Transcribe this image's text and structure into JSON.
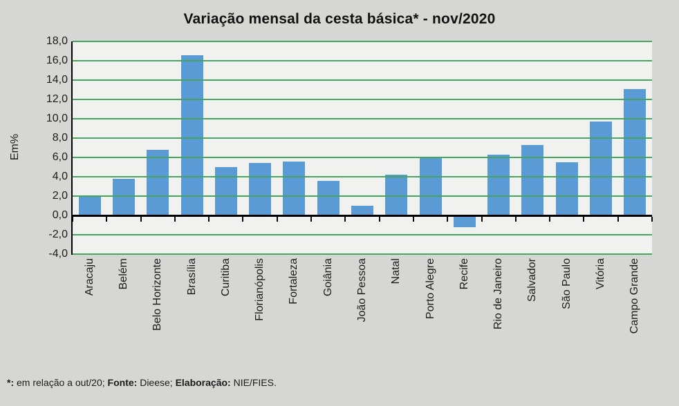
{
  "chart_data": {
    "type": "bar",
    "title": "Variação mensal da cesta básica* - nov/2020",
    "ylabel": "Em%",
    "xlabel": "",
    "categories": [
      "Aracaju",
      "Belém",
      "Belo Horizonte",
      "Brasília",
      "Curitiba",
      "Florianópolis",
      "Fortaleza",
      "Goiânia",
      "João Pessoa",
      "Natal",
      "Porto Alegre",
      "Recife",
      "Rio de Janeiro",
      "Salvador",
      "São Paulo",
      "Vitória",
      "Campo Grande"
    ],
    "values": [
      2.0,
      3.8,
      6.8,
      16.6,
      5.0,
      5.4,
      5.6,
      3.6,
      1.0,
      4.2,
      6.1,
      -1.2,
      6.3,
      7.3,
      5.5,
      9.7,
      13.1
    ],
    "ylim": [
      -4,
      18
    ],
    "ytick_step": 2,
    "yticks": [
      {
        "value": 18,
        "label": "18,0"
      },
      {
        "value": 16,
        "label": "16,0"
      },
      {
        "value": 14,
        "label": "14,0"
      },
      {
        "value": 12,
        "label": "12,0"
      },
      {
        "value": 10,
        "label": "10,0"
      },
      {
        "value": 8,
        "label": "8,0"
      },
      {
        "value": 6,
        "label": "6,0"
      },
      {
        "value": 4,
        "label": "4,0"
      },
      {
        "value": 2,
        "label": "2,0"
      },
      {
        "value": 0,
        "label": "0,0"
      },
      {
        "value": -2,
        "label": "-2,0"
      },
      {
        "value": -4,
        "label": "-4,0"
      }
    ],
    "grid": true,
    "legend": false,
    "colors": {
      "bar": "#5B9BD5",
      "grid": "#45A55E",
      "axis": "#000000",
      "plot_bg": "#F1F2F0",
      "page_bg": "#D6D7D4",
      "text": "#1A1A1A"
    }
  },
  "footnote": {
    "parts": [
      {
        "text": "*:",
        "bold": true
      },
      {
        "text": " em relação a out/20; ",
        "bold": false
      },
      {
        "text": "Fonte:",
        "bold": true
      },
      {
        "text": " Dieese; ",
        "bold": false
      },
      {
        "text": "Elaboração:",
        "bold": true
      },
      {
        "text": " NIE/FIES.",
        "bold": false
      }
    ]
  }
}
